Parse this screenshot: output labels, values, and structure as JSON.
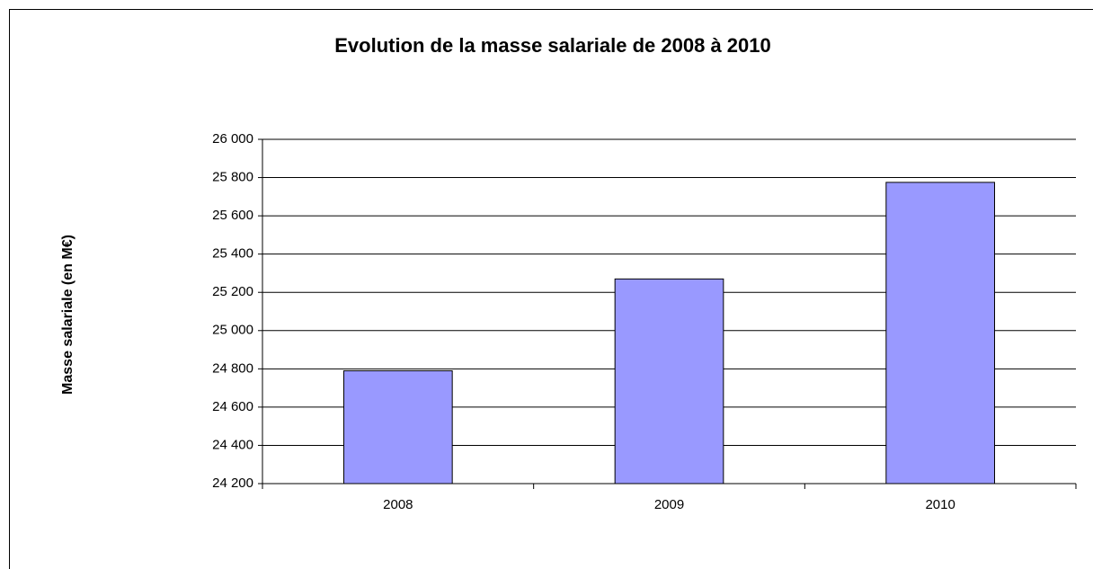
{
  "chart_data": {
    "type": "bar",
    "title": "Evolution de la masse salariale de 2008 à 2010",
    "y_label": "Masse salariale  (en M€)",
    "categories": [
      "2008",
      "2009",
      "2010"
    ],
    "values": [
      24790,
      25270,
      25775
    ],
    "color": "#9999ff",
    "ylim": [
      24200,
      26000
    ],
    "yticks": [
      {
        "value": 24200,
        "label": "24 200"
      },
      {
        "value": 24400,
        "label": "24 400"
      },
      {
        "value": 24600,
        "label": "24 600"
      },
      {
        "value": 24800,
        "label": "24 800"
      },
      {
        "value": 25000,
        "label": "25 000"
      },
      {
        "value": 25200,
        "label": "25 200"
      },
      {
        "value": 25400,
        "label": "25 400"
      },
      {
        "value": 25600,
        "label": "25 600"
      },
      {
        "value": 25800,
        "label": "25 800"
      },
      {
        "value": 26000,
        "label": "26 000"
      }
    ],
    "grid": true
  }
}
